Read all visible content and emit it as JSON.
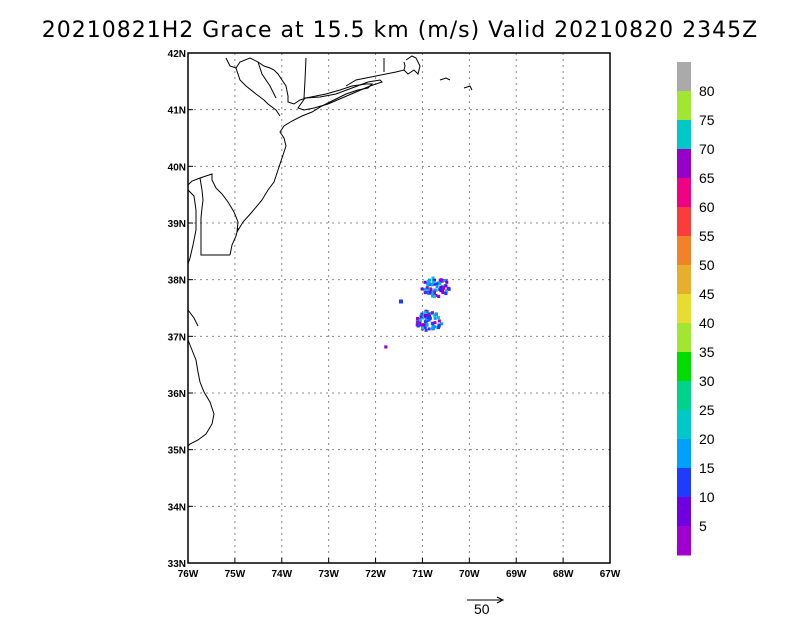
{
  "title": "20210821H2 Grace at 15.5 km (m/s) Valid 20210820 2345Z",
  "map": {
    "lon_range": [
      -76,
      -67
    ],
    "lat_range": [
      33,
      42
    ],
    "lon_labels": [
      "76W",
      "75W",
      "74W",
      "73W",
      "72W",
      "71W",
      "70W",
      "69W",
      "68W",
      "67W"
    ],
    "lat_labels": [
      "33N",
      "34N",
      "35N",
      "36N",
      "37N",
      "38N",
      "39N",
      "40N",
      "41N",
      "42N"
    ],
    "grid": true,
    "coastline_color": "#000000"
  },
  "colorbar": {
    "labels": [
      "5",
      "10",
      "15",
      "20",
      "25",
      "30",
      "35",
      "40",
      "45",
      "50",
      "55",
      "60",
      "65",
      "70",
      "75",
      "80"
    ],
    "colors": [
      "#a000d0",
      "#7000e0",
      "#1e3cff",
      "#00a0ff",
      "#00c8c8",
      "#00d28c",
      "#00dc00",
      "#a0e632",
      "#e6dc32",
      "#e6af2d",
      "#f08228",
      "#fa3c3c",
      "#f00082",
      "#9600c8",
      "#00c8c8",
      "#a0e632",
      "#aaaaaa"
    ]
  },
  "reference_vector": {
    "label": "50"
  },
  "wind_data": {
    "units": "m/s",
    "clusters": [
      {
        "lon": -70.75,
        "lat": 37.9,
        "speed": "5-20"
      },
      {
        "lon": -70.9,
        "lat": 37.3,
        "speed": "5-20"
      },
      {
        "lon": -71.8,
        "lat": 36.85,
        "speed": "5"
      }
    ]
  }
}
